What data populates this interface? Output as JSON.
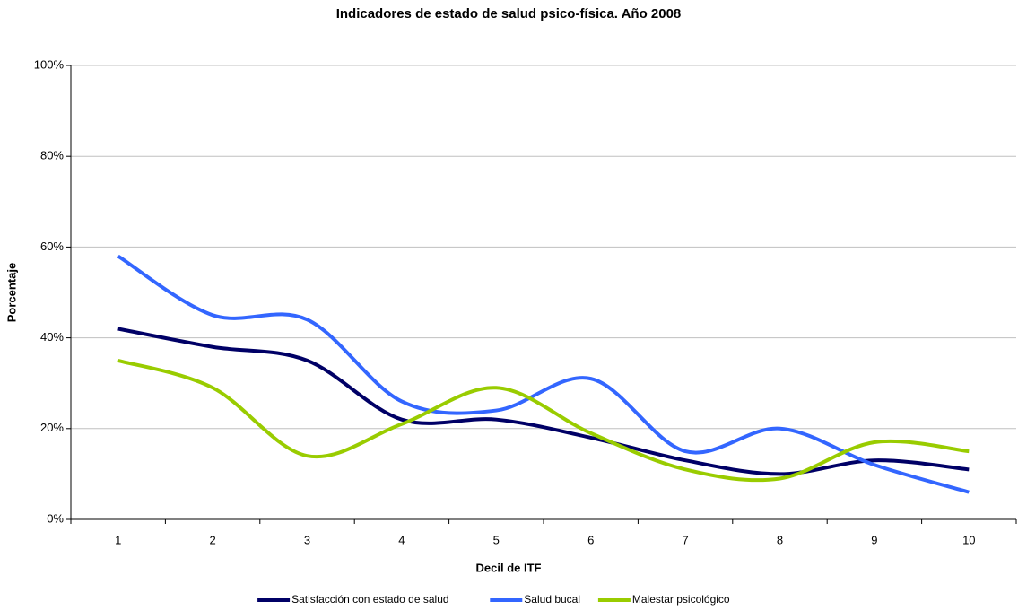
{
  "chart_data": {
    "type": "line",
    "title": "Indicadores de estado de salud psico-física. Año 2008",
    "x_label": "Decil de ITF",
    "y_label": "Porcentaje",
    "categories": [
      "1",
      "2",
      "3",
      "4",
      "5",
      "6",
      "7",
      "8",
      "9",
      "10"
    ],
    "series": [
      {
        "name": "Satisfacción con estado de salud",
        "color": "#000066",
        "values": [
          42,
          38,
          35,
          22,
          22,
          18,
          13,
          10,
          13,
          11
        ]
      },
      {
        "name": "Salud bucal",
        "color": "#3366ff",
        "values": [
          58,
          45,
          44,
          26,
          24,
          31,
          15,
          20,
          12,
          6
        ]
      },
      {
        "name": "Malestar psicológico",
        "color": "#99cc00",
        "values": [
          35,
          29,
          14,
          21,
          29,
          19,
          11,
          9,
          17,
          15
        ]
      }
    ],
    "ylim": [
      0,
      100
    ],
    "yticks": [
      {
        "value": 0,
        "label": "0%"
      },
      {
        "value": 20,
        "label": "20%"
      },
      {
        "value": 40,
        "label": "40%"
      },
      {
        "value": 60,
        "label": "60%"
      },
      {
        "value": 80,
        "label": "80%"
      },
      {
        "value": 100,
        "label": "100%"
      }
    ],
    "grid": true,
    "smooth": true,
    "legend": "bottom"
  }
}
